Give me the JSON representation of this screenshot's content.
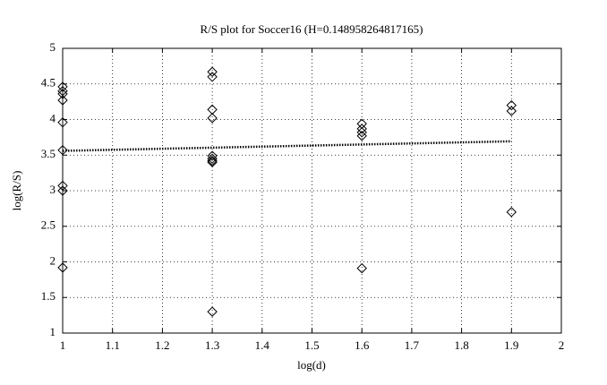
{
  "chart_data": {
    "type": "scatter",
    "title": "R/S plot for Soccer16 (H=0.148958264817165)",
    "xlabel": "log(d)",
    "ylabel": "log(R/S)",
    "xlim": [
      1,
      2
    ],
    "xticks": [
      1,
      1.1,
      1.2,
      1.3,
      1.4,
      1.5,
      1.6,
      1.7,
      1.8,
      1.9,
      2
    ],
    "ylim": [
      1,
      5
    ],
    "yticks": [
      1,
      1.5,
      2,
      2.5,
      3,
      3.5,
      4,
      4.5,
      5
    ],
    "grid": true,
    "series": [
      {
        "marker": "diamond",
        "color": "#000000",
        "x": [
          1,
          1,
          1,
          1,
          1,
          1,
          1,
          1,
          1,
          1.3,
          1.3,
          1.3,
          1.3,
          1.3,
          1.3,
          1.3,
          1.3,
          1.3,
          1.6,
          1.6,
          1.6,
          1.6,
          1.6,
          1.9,
          1.9,
          1.9
        ],
        "values": [
          4.46,
          4.4,
          4.36,
          4.27,
          3.96,
          3.57,
          3.07,
          3.0,
          1.92,
          4.67,
          4.6,
          4.14,
          4.02,
          3.49,
          3.45,
          3.42,
          3.4,
          1.3,
          3.94,
          3.87,
          3.82,
          3.77,
          1.91,
          4.2,
          4.12,
          2.7
        ]
      },
      {
        "marker": "dotted-line",
        "color": "#000000",
        "x": [
          1,
          1.9
        ],
        "values": [
          3.56,
          3.694
        ]
      }
    ]
  }
}
